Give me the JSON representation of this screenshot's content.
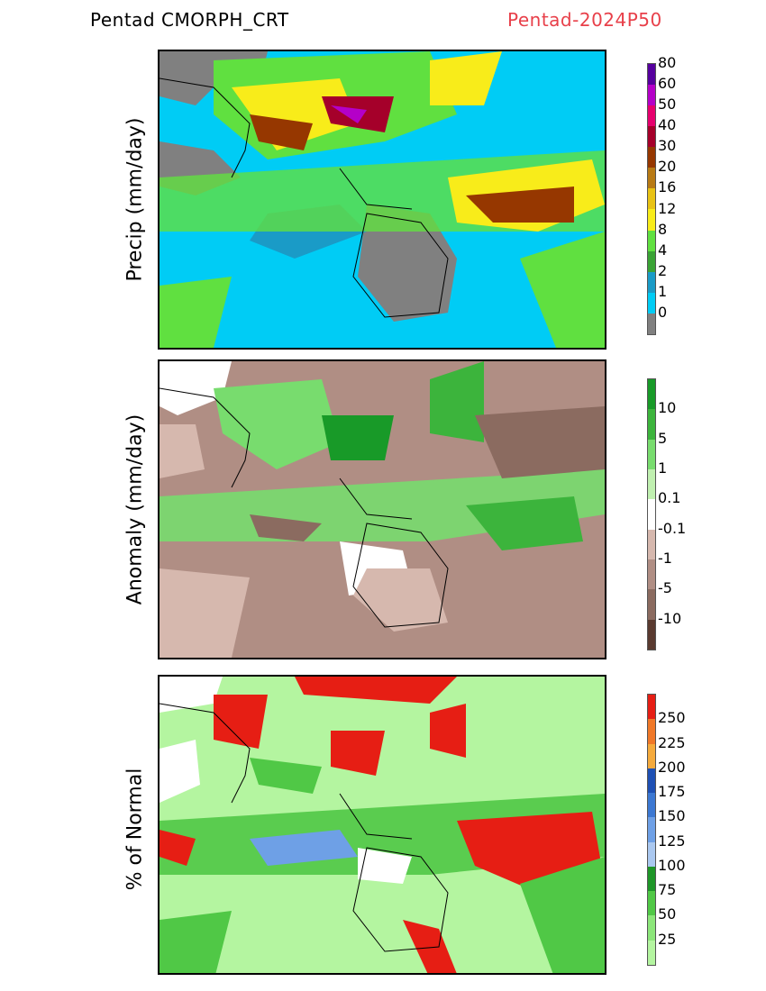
{
  "header": {
    "left": "Pentad CMORPH_CRT",
    "right": "Pentad-2024P50"
  },
  "panels": [
    {
      "ylabel": "Precip (mm/day)",
      "colorbar": {
        "colors": [
          "#808080",
          "#00ccf5",
          "#1a9bc7",
          "#3aa335",
          "#60e040",
          "#f8ec1a",
          "#e8c214",
          "#b87a14",
          "#963700",
          "#a5002a",
          "#e6006e",
          "#b400c8",
          "#56009e"
        ],
        "labels": [
          "0",
          "1",
          "2",
          "4",
          "8",
          "12",
          "16",
          "20",
          "30",
          "40",
          "50",
          "60",
          "80"
        ]
      }
    },
    {
      "ylabel": "Anomaly (mm/day)",
      "colorbar": {
        "colors": [
          "#5a3a30",
          "#8b6b60",
          "#b08e84",
          "#d6b8ae",
          "#ffffff",
          "#c0f0b0",
          "#78dc6e",
          "#3cb43c",
          "#189a28"
        ],
        "labels": [
          "-10",
          "-5",
          "-1",
          "-0.1",
          "0.1",
          "1",
          "5",
          "10"
        ]
      }
    },
    {
      "ylabel": "% of Normal",
      "colorbar": {
        "colors": [
          "#b4f5a0",
          "#8ce67a",
          "#50c846",
          "#1e9628",
          "#aac8f0",
          "#6ea0e6",
          "#3c78d2",
          "#1e50b4",
          "#f5aa3c",
          "#f07828",
          "#e61e14"
        ],
        "labels": [
          "25",
          "50",
          "75",
          "100",
          "125",
          "150",
          "175",
          "200",
          "225",
          "250"
        ]
      }
    }
  ]
}
